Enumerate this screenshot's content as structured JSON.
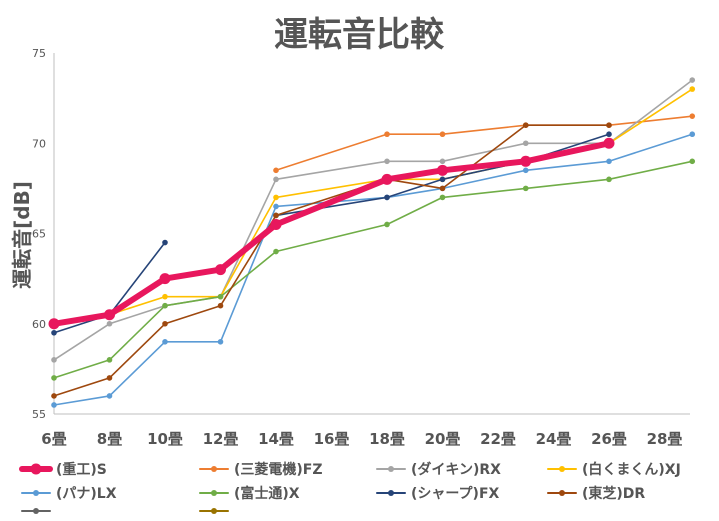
{
  "chart_data": {
    "type": "line",
    "title": "運転音比較",
    "xlabel": "",
    "ylabel": "運転音[dB]",
    "categories": [
      "6畳",
      "8畳",
      "10畳",
      "12畳",
      "14畳",
      "16畳",
      "18畳",
      "20畳",
      "22畳",
      "24畳",
      "26畳",
      "28畳"
    ],
    "y_ticks": [
      "55",
      "60",
      "65",
      "70",
      "75"
    ],
    "ylim": [
      55,
      75
    ],
    "grid": false,
    "legend_position": "bottom",
    "series": [
      {
        "name": "(重工)S",
        "color": "#e8175d",
        "thick": true,
        "points": [
          [
            6,
            60
          ],
          [
            8,
            60.5
          ],
          [
            10,
            62.5
          ],
          [
            12,
            63
          ],
          [
            14,
            65.5
          ],
          [
            18,
            68
          ],
          [
            20,
            68.5
          ],
          [
            23,
            69
          ],
          [
            26,
            70
          ]
        ]
      },
      {
        "name": "(三菱電機)FZ",
        "color": "#ed7d31",
        "thick": false,
        "points": [
          [
            14,
            68.5
          ],
          [
            18,
            70.5
          ],
          [
            20,
            70.5
          ],
          [
            23,
            71
          ],
          [
            26,
            71
          ],
          [
            29,
            71.5
          ]
        ]
      },
      {
        "name": "(ダイキン)RX",
        "color": "#a5a5a5",
        "thick": false,
        "points": [
          [
            6,
            58
          ],
          [
            8,
            60
          ],
          [
            10,
            61
          ],
          [
            12,
            61.5
          ],
          [
            14,
            68
          ],
          [
            18,
            69
          ],
          [
            20,
            69
          ],
          [
            23,
            70
          ],
          [
            26,
            70
          ],
          [
            29,
            73.5
          ]
        ]
      },
      {
        "name": "(白くまくん)XJ",
        "color": "#ffc000",
        "thick": false,
        "points": [
          [
            6,
            60
          ],
          [
            8,
            60.5
          ],
          [
            10,
            61.5
          ],
          [
            12,
            61.5
          ],
          [
            14,
            67
          ],
          [
            18,
            68
          ],
          [
            20,
            68
          ],
          [
            23,
            69
          ],
          [
            26,
            70
          ],
          [
            29,
            73
          ]
        ]
      },
      {
        "name": "(パナ)LX",
        "color": "#5b9bd5",
        "thick": false,
        "points": [
          [
            6,
            55.5
          ],
          [
            8,
            56
          ],
          [
            10,
            59
          ],
          [
            12,
            59
          ],
          [
            14,
            66.5
          ],
          [
            18,
            67
          ],
          [
            20,
            67.5
          ],
          [
            23,
            68.5
          ],
          [
            26,
            69
          ],
          [
            29,
            70.5
          ]
        ]
      },
      {
        "name": "(富士通)X",
        "color": "#70ad47",
        "thick": false,
        "points": [
          [
            6,
            57
          ],
          [
            8,
            58
          ],
          [
            10,
            61
          ],
          [
            12,
            61.5
          ],
          [
            14,
            64
          ],
          [
            18,
            65.5
          ],
          [
            20,
            67
          ],
          [
            23,
            67.5
          ],
          [
            26,
            68
          ],
          [
            29,
            69
          ]
        ]
      },
      {
        "name": "(シャープ)FX",
        "color": "#264478",
        "thick": false,
        "points": [
          [
            6,
            59.5
          ],
          [
            8,
            60.5
          ],
          [
            10,
            64.5
          ]
        ]
      },
      {
        "name": "(シャープ)FX",
        "color": "#264478",
        "thick": false,
        "points": [
          [
            14,
            66
          ],
          [
            18,
            67
          ],
          [
            20,
            68
          ],
          [
            23,
            69
          ],
          [
            26,
            70.5
          ]
        ]
      },
      {
        "name": "(東芝)DR",
        "color": "#9e480e",
        "thick": false,
        "points": [
          [
            6,
            56
          ],
          [
            8,
            57
          ],
          [
            10,
            60
          ],
          [
            12,
            61
          ],
          [
            14,
            66
          ],
          [
            18,
            68
          ],
          [
            20,
            67.5
          ],
          [
            23,
            71
          ],
          [
            26,
            71
          ]
        ]
      }
    ],
    "legend": [
      {
        "name": "(重工)S",
        "color": "#e8175d",
        "thick": true
      },
      {
        "name": "(三菱電機)FZ",
        "color": "#ed7d31",
        "thick": false
      },
      {
        "name": "(ダイキン)RX",
        "color": "#a5a5a5",
        "thick": false
      },
      {
        "name": "(白くまくん)XJ",
        "color": "#ffc000",
        "thick": false
      },
      {
        "name": "(パナ)LX",
        "color": "#5b9bd5",
        "thick": false
      },
      {
        "name": "(富士通)X",
        "color": "#70ad47",
        "thick": false
      },
      {
        "name": "(シャープ)FX",
        "color": "#264478",
        "thick": false
      },
      {
        "name": "(東芝)DR",
        "color": "#9e480e",
        "thick": false
      },
      {
        "name": "",
        "color": "#636363",
        "thick": false
      },
      {
        "name": "",
        "color": "#997300",
        "thick": false
      }
    ]
  }
}
